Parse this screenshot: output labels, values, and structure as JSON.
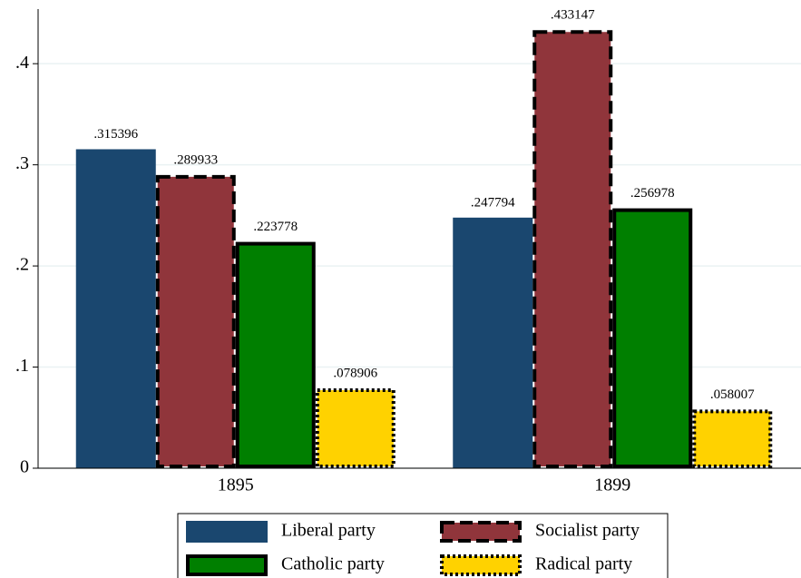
{
  "chart_data": {
    "type": "bar",
    "categories": [
      "1895",
      "1899"
    ],
    "series": [
      {
        "name": "Liberal party",
        "color": "#1a476f",
        "edge": null,
        "values": [
          0.315396,
          0.247794
        ],
        "value_labels": [
          ".315396",
          ".247794"
        ]
      },
      {
        "name": "Socialist party",
        "color": "#90353b",
        "edge": "dashed",
        "values": [
          0.289933,
          0.433147
        ],
        "value_labels": [
          ".289933",
          ".433147"
        ]
      },
      {
        "name": "Catholic party",
        "color": "#007f00",
        "edge": "solid",
        "values": [
          0.223778,
          0.256978
        ],
        "value_labels": [
          ".223778",
          ".256978"
        ]
      },
      {
        "name": "Radical party",
        "color": "#ffd200",
        "edge": "dotted",
        "values": [
          0.078906,
          0.058007
        ],
        "value_labels": [
          ".078906",
          ".058007"
        ]
      }
    ],
    "ylim": [
      0,
      0.454
    ],
    "yticks": [
      0,
      {
        "value": 0.1,
        "label": ".1"
      },
      {
        "value": 0.2,
        "label": ".2"
      },
      {
        "value": 0.3,
        "label": ".3"
      },
      {
        "value": 0.4,
        "label": ".4"
      }
    ],
    "grid": true,
    "legend": "bottom"
  }
}
